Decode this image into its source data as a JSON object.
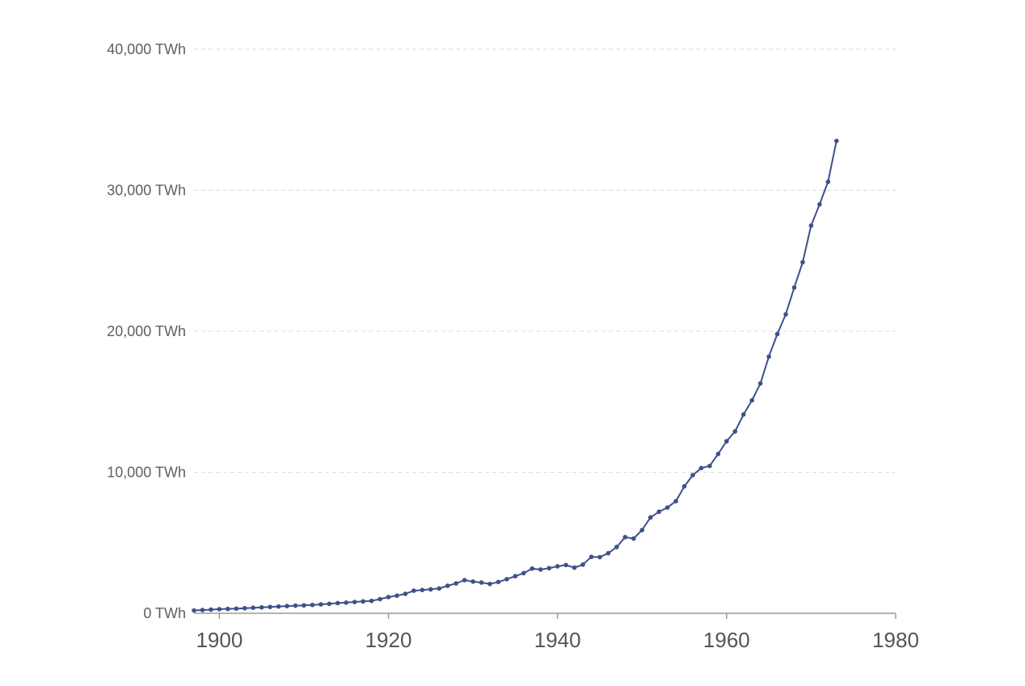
{
  "colors": {
    "series": "#3d5189",
    "grid": "#d9d9d9",
    "axis": "#9a9a9a",
    "text": "#5f5f5f"
  },
  "chart_data": {
    "type": "line",
    "title": "",
    "xlabel": "",
    "ylabel": "",
    "xlim": [
      1897,
      1980
    ],
    "ylim": [
      0,
      40000
    ],
    "grid": true,
    "legend": "none",
    "x_ticks": [
      "1900",
      "1920",
      "1940",
      "1960",
      "1980"
    ],
    "x_tick_values": [
      1900,
      1920,
      1940,
      1960,
      1980
    ],
    "y_ticks": [
      "0 TWh",
      "10,000 TWh",
      "20,000 TWh",
      "30,000 TWh",
      "40,000 TWh"
    ],
    "y_tick_values": [
      0,
      10000,
      20000,
      30000,
      40000
    ],
    "series": [
      {
        "x": [
          1897,
          1898,
          1899,
          1900,
          1901,
          1902,
          1903,
          1904,
          1905,
          1906,
          1907,
          1908,
          1909,
          1910,
          1911,
          1912,
          1913,
          1914,
          1915,
          1916,
          1917,
          1918,
          1919,
          1920,
          1921,
          1922,
          1923,
          1924,
          1925,
          1926,
          1927,
          1928,
          1929,
          1930,
          1931,
          1932,
          1933,
          1934,
          1935,
          1936,
          1937,
          1938,
          1939,
          1940,
          1941,
          1942,
          1943,
          1944,
          1945,
          1946,
          1947,
          1948,
          1949,
          1950,
          1951,
          1952,
          1953,
          1954,
          1955,
          1956,
          1957,
          1958,
          1959,
          1960,
          1961,
          1962,
          1963,
          1964,
          1965,
          1966,
          1967,
          1968,
          1969,
          1970,
          1971,
          1972,
          1973
        ],
        "y": [
          200,
          230,
          260,
          290,
          310,
          330,
          360,
          390,
          420,
          450,
          480,
          510,
          540,
          560,
          590,
          630,
          670,
          720,
          760,
          800,
          840,
          880,
          1000,
          1150,
          1250,
          1380,
          1600,
          1650,
          1700,
          1760,
          1950,
          2120,
          2350,
          2250,
          2180,
          2080,
          2220,
          2420,
          2630,
          2850,
          3170,
          3100,
          3200,
          3330,
          3420,
          3240,
          3450,
          4000,
          3980,
          4260,
          4700,
          5400,
          5300,
          5900,
          6800,
          7200,
          7500,
          7950,
          9000,
          9800,
          10300,
          10450,
          11300,
          12200,
          12900,
          14100,
          15100,
          16300,
          18200,
          19800,
          21200,
          23100,
          24900,
          27500,
          29000,
          30600,
          33500
        ]
      }
    ]
  }
}
